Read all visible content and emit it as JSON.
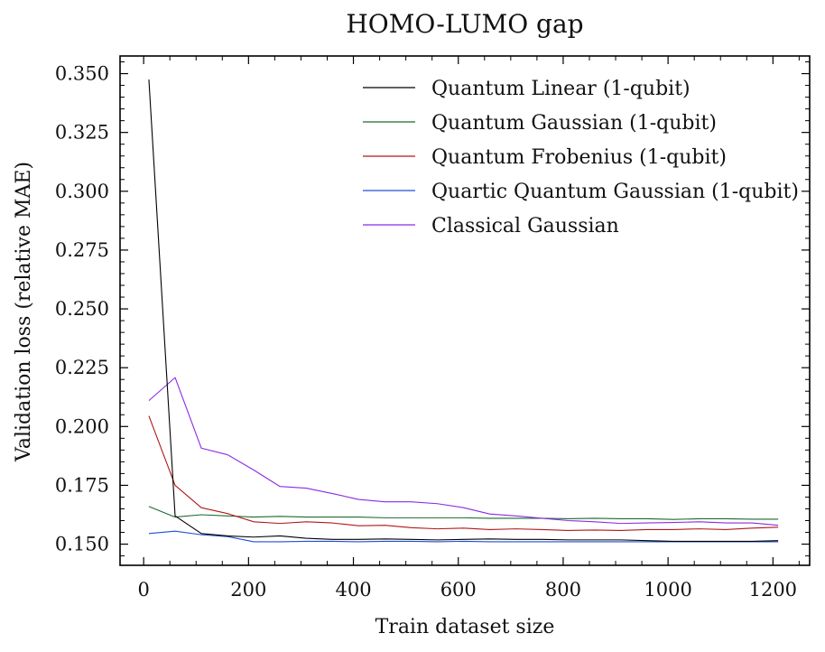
{
  "chart_data": {
    "type": "line",
    "title": "HOMO-LUMO gap",
    "xlabel": "Train dataset size",
    "ylabel": "Validation loss (relative MAE)",
    "xlim": [
      -45,
      1270
    ],
    "ylim": [
      0.141,
      0.3575
    ],
    "xticks": [
      0,
      200,
      400,
      600,
      800,
      1000,
      1200
    ],
    "yticks": [
      0.15,
      0.175,
      0.2,
      0.225,
      0.25,
      0.275,
      0.3,
      0.325,
      0.35
    ],
    "xtick_labels": [
      "0",
      "200",
      "400",
      "600",
      "800",
      "1000",
      "1200"
    ],
    "ytick_labels": [
      "0.150",
      "0.175",
      "0.200",
      "0.225",
      "0.250",
      "0.275",
      "0.300",
      "0.325",
      "0.350"
    ],
    "legend_position": "top-right",
    "grid": false,
    "x": [
      10,
      60,
      110,
      160,
      210,
      260,
      310,
      360,
      410,
      460,
      510,
      560,
      610,
      660,
      710,
      760,
      810,
      860,
      910,
      960,
      1010,
      1060,
      1110,
      1160,
      1210
    ],
    "series": [
      {
        "name": "Quantum Linear (1-qubit)",
        "color": "#000000",
        "values": [
          0.3475,
          0.162,
          0.1545,
          0.1535,
          0.153,
          0.1535,
          0.1525,
          0.152,
          0.152,
          0.1522,
          0.152,
          0.1518,
          0.152,
          0.1522,
          0.152,
          0.152,
          0.1518,
          0.1518,
          0.1518,
          0.1515,
          0.1512,
          0.1512,
          0.1512,
          0.1512,
          0.1515
        ]
      },
      {
        "name": "Quantum Gaussian (1-qubit)",
        "color": "#1b6b2e",
        "values": [
          0.166,
          0.1615,
          0.1625,
          0.162,
          0.1615,
          0.1618,
          0.1615,
          0.1615,
          0.1615,
          0.1612,
          0.1612,
          0.1612,
          0.1612,
          0.161,
          0.161,
          0.161,
          0.1608,
          0.161,
          0.1608,
          0.1608,
          0.1605,
          0.1608,
          0.1608,
          0.1606,
          0.1606
        ]
      },
      {
        "name": "Quantum Frobenius (1-qubit)",
        "color": "#b01818",
        "values": [
          0.2045,
          0.175,
          0.1655,
          0.163,
          0.1595,
          0.1588,
          0.1595,
          0.159,
          0.1578,
          0.158,
          0.157,
          0.1565,
          0.1568,
          0.1562,
          0.1565,
          0.1562,
          0.1558,
          0.156,
          0.1558,
          0.1562,
          0.1562,
          0.1565,
          0.1562,
          0.1568,
          0.1572
        ]
      },
      {
        "name": "Quartic Quantum Gaussian (1-qubit)",
        "color": "#1f4fd1",
        "values": [
          0.1545,
          0.1555,
          0.154,
          0.1532,
          0.151,
          0.151,
          0.1512,
          0.1512,
          0.151,
          0.1512,
          0.1512,
          0.151,
          0.1512,
          0.151,
          0.151,
          0.151,
          0.151,
          0.151,
          0.151,
          0.151,
          0.151,
          0.151,
          0.151,
          0.151,
          0.151
        ]
      },
      {
        "name": "Classical Gaussian",
        "color": "#8a2be2",
        "values": [
          0.211,
          0.2208,
          0.1908,
          0.188,
          0.1815,
          0.1745,
          0.1738,
          0.1715,
          0.169,
          0.168,
          0.168,
          0.1672,
          0.1655,
          0.1628,
          0.162,
          0.161,
          0.16,
          0.1595,
          0.1588,
          0.159,
          0.1592,
          0.1595,
          0.159,
          0.159,
          0.158
        ]
      }
    ]
  }
}
